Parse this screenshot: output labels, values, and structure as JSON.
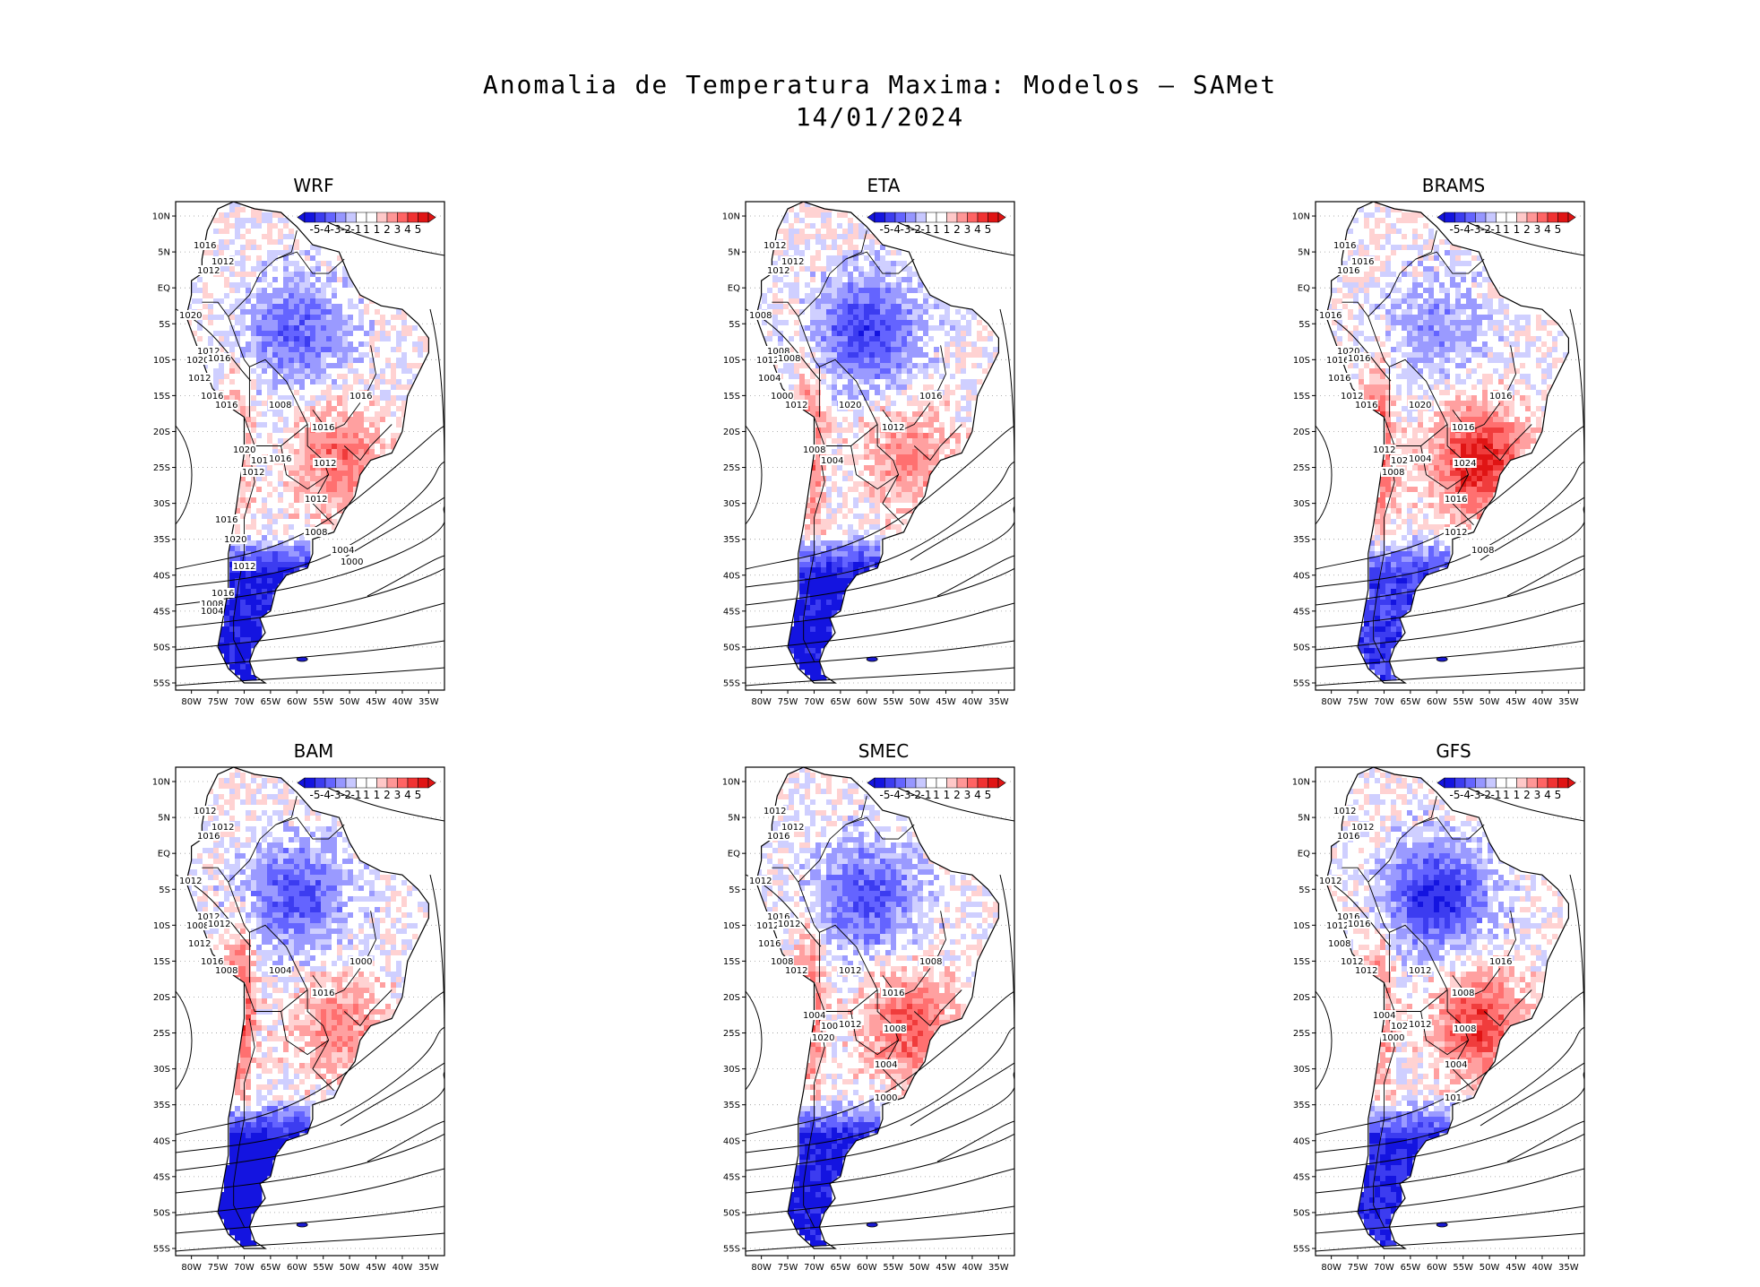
{
  "title": {
    "line1": "Anomalia de Temperatura Maxima: Modelos – SAMet",
    "line2": "14/01/2024"
  },
  "axes": {
    "lat_labels": [
      "10N",
      "5N",
      "EQ",
      "5S",
      "10S",
      "15S",
      "20S",
      "25S",
      "30S",
      "35S",
      "40S",
      "45S",
      "50S",
      "55S"
    ],
    "lon_labels": [
      "80W",
      "75W",
      "70W",
      "65W",
      "60W",
      "55W",
      "50W",
      "45W",
      "40W",
      "35W"
    ]
  },
  "colorbar": {
    "labels": [
      "-5",
      "-4",
      "-3",
      "-2",
      "-1",
      "1",
      "1",
      "2",
      "3",
      "4",
      "5"
    ],
    "colors": [
      "#1414e0",
      "#3c3cf0",
      "#6464ff",
      "#9696ff",
      "#c8c8ff",
      "#ffffff",
      "#ffffff",
      "#ffc8c8",
      "#ff9696",
      "#ff6464",
      "#f03232",
      "#e01414"
    ]
  },
  "colors": {
    "cold": "#1e1ee6",
    "warm": "#e61e1e",
    "coast": "#000000"
  },
  "panels": [
    {
      "name": "WRF",
      "anomaly": {
        "north_amazon": -2.5,
        "southeast": 2.5,
        "patagonia": -4.5,
        "andes": 1.5
      },
      "contours": [
        "1016",
        "1012",
        "1012",
        "1020",
        "1012",
        "1020",
        "1016",
        "1012",
        "1016",
        "1016",
        "1008",
        "1016",
        "1016",
        "1020",
        "1016",
        "1012",
        "1016",
        "1012",
        "1012",
        "1008",
        "1004",
        "1000",
        "1016",
        "1020",
        "1012",
        "1016",
        "1008",
        "1004"
      ]
    },
    {
      "name": "ETA",
      "anomaly": {
        "north_amazon": -3.5,
        "southeast": 2.0,
        "patagonia": -4.5,
        "andes": 3.0
      },
      "contours": [
        "1012",
        "1012",
        "1012",
        "1008",
        "1008",
        "1012",
        "1008",
        "1004",
        "1000",
        "1012",
        "1020",
        "1016",
        "1012",
        "1008",
        "1004"
      ]
    },
    {
      "name": "BRAMS",
      "anomaly": {
        "north_amazon": -1.5,
        "southeast": 4.5,
        "patagonia": -3.5,
        "andes": 3.5
      },
      "contours": [
        "1016",
        "1016",
        "1016",
        "1016",
        "1020",
        "1016",
        "1016",
        "1016",
        "1012",
        "1016",
        "1020",
        "1016",
        "1016",
        "1012",
        "1020",
        "1008",
        "1004",
        "1024",
        "1016",
        "1012",
        "1008"
      ]
    },
    {
      "name": "BAM",
      "anomaly": {
        "north_amazon": -3.0,
        "southeast": 2.0,
        "patagonia": -5.0,
        "andes": 4.0
      },
      "contours": [
        "1012",
        "1012",
        "1016",
        "1012",
        "1012",
        "1008",
        "1012",
        "1012",
        "1016",
        "1008",
        "1004",
        "1000",
        "1016"
      ]
    },
    {
      "name": "SMEC",
      "anomaly": {
        "north_amazon": -3.0,
        "southeast": 3.0,
        "patagonia": -4.5,
        "andes": 3.0
      },
      "contours": [
        "1012",
        "1012",
        "1016",
        "1012",
        "1016",
        "1012",
        "1012",
        "1016",
        "1008",
        "1012",
        "1012",
        "1008",
        "1016",
        "1004",
        "1000",
        "1020",
        "1012",
        "1008",
        "1004",
        "1000"
      ]
    },
    {
      "name": "GFS",
      "anomaly": {
        "north_amazon": -4.0,
        "southeast": 3.5,
        "patagonia": -4.0,
        "andes": 2.5
      },
      "contours": [
        "1012",
        "1012",
        "1016",
        "1012",
        "1016",
        "1012",
        "1016",
        "1008",
        "1012",
        "1012",
        "1012",
        "1016",
        "1008",
        "1004",
        "1020",
        "1000",
        "1012",
        "1008",
        "1004",
        "101"
      ]
    }
  ]
}
